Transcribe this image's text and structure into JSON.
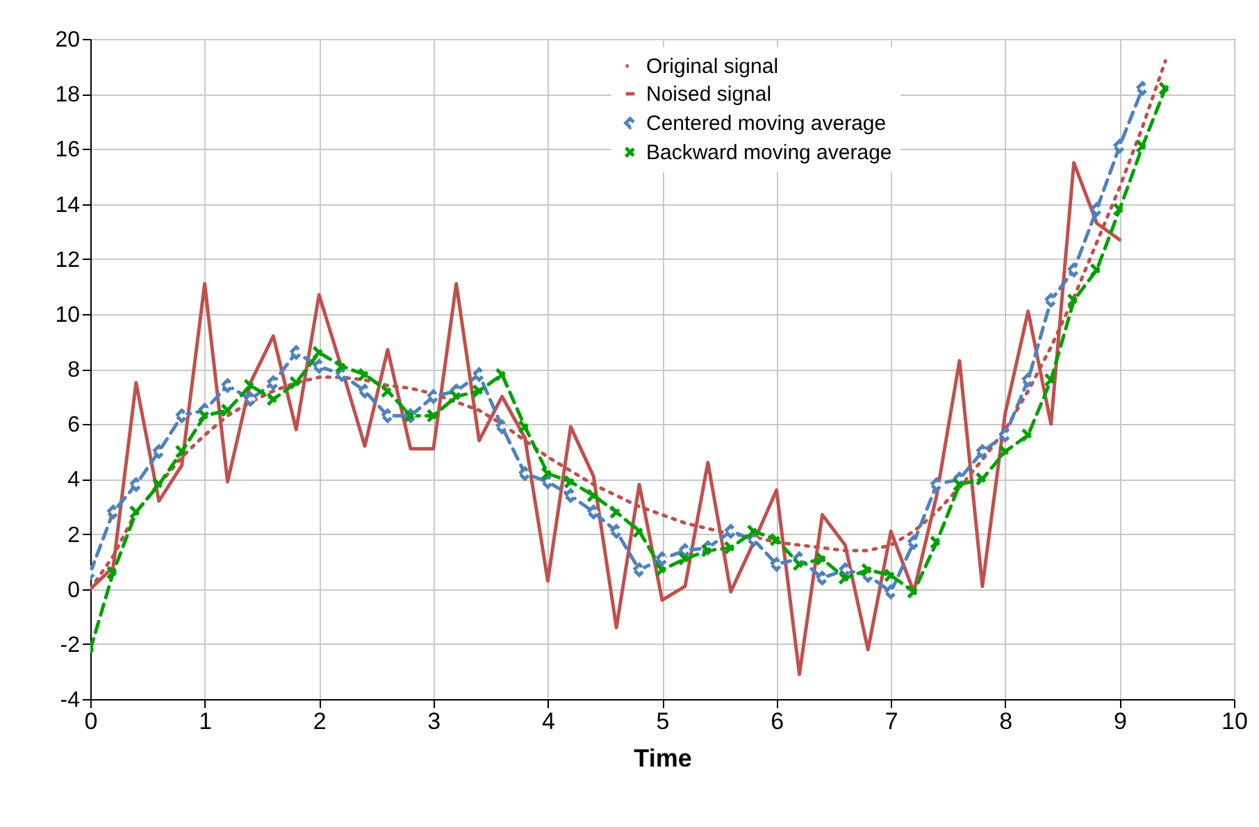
{
  "chart_data": {
    "type": "line",
    "xlabel": "Time",
    "x": [
      0,
      0.2,
      0.4,
      0.6,
      0.8,
      1,
      1.2,
      1.4,
      1.6,
      1.8,
      2,
      2.2,
      2.4,
      2.6,
      2.8,
      3,
      3.2,
      3.4,
      3.6,
      3.8,
      4,
      4.2,
      4.4,
      4.6,
      4.8,
      5,
      5.2,
      5.4,
      5.6,
      5.8,
      6,
      6.2,
      6.4,
      6.6,
      6.8,
      7,
      7.2,
      7.4,
      7.6,
      7.8,
      8,
      8.2,
      8.4,
      8.6,
      8.8,
      9,
      9.2,
      9.4
    ],
    "series": [
      {
        "name": "Original signal",
        "color": "#c0504d",
        "line_style": "dotted",
        "marker": "none",
        "values": [
          0,
          1.2,
          2.8,
          3.8,
          4.8,
          5.6,
          6.3,
          6.8,
          7.2,
          7.5,
          7.7,
          7.7,
          7.6,
          7.4,
          7.3,
          7.1,
          6.8,
          6.5,
          6.0,
          5.4,
          4.8,
          4.3,
          3.8,
          3.4,
          3.0,
          2.7,
          2.4,
          2.2,
          2.0,
          1.9,
          1.7,
          1.6,
          1.5,
          1.4,
          1.4,
          1.6,
          2.1,
          2.8,
          3.7,
          4.7,
          5.8,
          7.2,
          8.8,
          10.6,
          12.6,
          14.6,
          16.8,
          19.2
        ]
      },
      {
        "name": "Noised signal",
        "color": "#c0504d",
        "line_style": "solid",
        "marker": "none",
        "values": [
          0,
          0.8,
          7.5,
          3.2,
          4.5,
          11.1,
          3.9,
          7.5,
          9.2,
          5.8,
          10.7,
          8.0,
          5.2,
          8.7,
          5.1,
          5.1,
          11.1,
          5.4,
          7.0,
          5.5,
          0.3,
          5.9,
          4.1,
          -1.4,
          3.8,
          -0.4,
          0.1,
          4.6,
          -0.1,
          1.7,
          3.6,
          -3.1,
          2.7,
          1.6,
          -2.2,
          2.1,
          -0.1,
          3.4,
          8.3,
          0.1,
          6.4,
          10.1,
          6.0,
          15.5,
          13.3,
          12.7,
          null,
          null
        ]
      },
      {
        "name": "Centered moving average",
        "color": "#4f81bd",
        "line_style": "dashed",
        "marker": "diamond",
        "values": [
          0.6,
          2.8,
          3.8,
          5.0,
          6.3,
          6.5,
          7.4,
          6.9,
          7.5,
          8.6,
          8.1,
          7.8,
          7.2,
          6.3,
          6.3,
          7.0,
          7.2,
          7.8,
          5.9,
          4.2,
          3.9,
          3.4,
          2.8,
          2.1,
          0.7,
          1.1,
          1.4,
          1.5,
          2.1,
          1.8,
          0.9,
          1.1,
          0.4,
          0.7,
          0.5,
          -0.1,
          1.7,
          3.8,
          4.0,
          5.0,
          5.6,
          7.6,
          10.5,
          11.6,
          13.8,
          16.1,
          18.2,
          null
        ]
      },
      {
        "name": "Backward moving average",
        "color": "#00a000",
        "line_style": "dashed",
        "marker": "cross",
        "values": [
          -2.2,
          0.6,
          2.8,
          3.8,
          5.0,
          6.3,
          6.5,
          7.4,
          6.9,
          7.5,
          8.6,
          8.1,
          7.8,
          7.2,
          6.3,
          6.3,
          7.0,
          7.2,
          7.8,
          5.9,
          4.2,
          3.9,
          3.4,
          2.8,
          2.1,
          0.7,
          1.1,
          1.4,
          1.5,
          2.1,
          1.8,
          0.9,
          1.1,
          0.4,
          0.7,
          0.5,
          -0.1,
          1.7,
          3.8,
          4.0,
          5.0,
          5.6,
          7.6,
          10.5,
          11.6,
          13.8,
          16.1,
          18.2
        ]
      }
    ],
    "xlim": [
      0,
      10
    ],
    "xticks": [
      0,
      1,
      2,
      3,
      4,
      5,
      6,
      7,
      8,
      9,
      10
    ],
    "ylim": [
      -4,
      20
    ],
    "yticks": [
      -4,
      -2,
      0,
      2,
      4,
      6,
      8,
      10,
      12,
      14,
      16,
      18,
      20
    ],
    "grid": true,
    "legend": "top right"
  }
}
